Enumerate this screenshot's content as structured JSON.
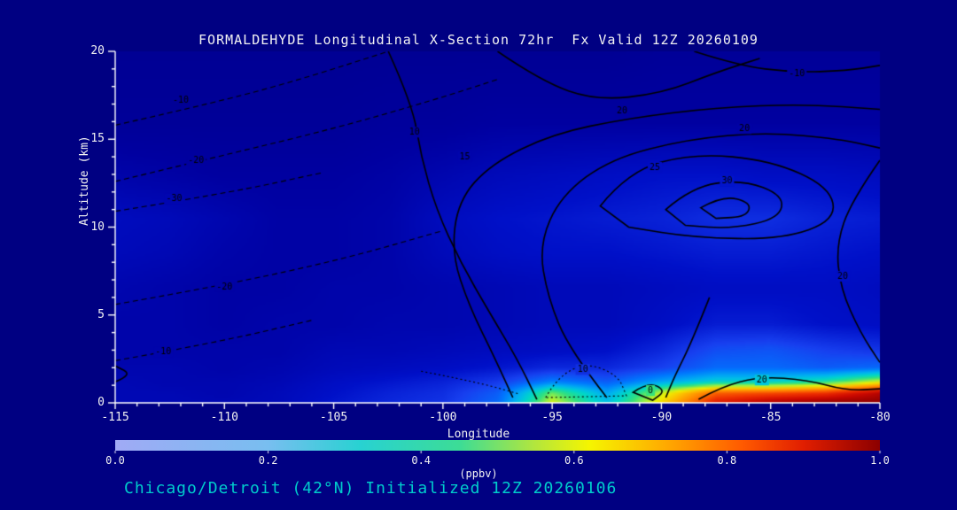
{
  "page": {
    "background": "#000082",
    "text_color": "#f2f2f2",
    "subtitle_color": "#00cccc",
    "axis_color": "#ffffff",
    "contour_line_color": "#000000"
  },
  "chart_data": {
    "type": "heatmap",
    "title": "FORMALDEHYDE Longitudinal X-Section 72hr  Fx Valid 12Z 20260109",
    "subtitle": "Chicago/Detroit (42°N) Initialized 12Z 20260106",
    "xlabel": "Longitude",
    "ylabel": "Altitude (km)",
    "units_label": "(ppbv)",
    "xlim": [
      -115,
      -80
    ],
    "ylim": [
      0,
      20
    ],
    "x_ticks": [
      -115,
      -110,
      -105,
      -100,
      -95,
      -90,
      -85,
      -80
    ],
    "x_tick_labels": [
      "-115",
      "-110",
      "-105",
      "-100",
      "-95",
      "-90",
      "-85",
      "-80"
    ],
    "x_minor_step": 1,
    "y_ticks": [
      0,
      5,
      10,
      15,
      20
    ],
    "y_tick_labels": [
      "0",
      "5",
      "10",
      "15",
      "20"
    ],
    "y_minor_step": 1,
    "grid": false,
    "colorbar": {
      "min": 0.0,
      "max": 1.0,
      "tick_values": [
        0.0,
        0.2,
        0.4,
        0.6,
        0.8,
        1.0
      ],
      "tick_labels": [
        "0.0",
        "0.2",
        "0.4",
        "0.6",
        "0.8",
        "1.0"
      ],
      "gradient_stops": [
        [
          0.0,
          "#a0aaf5"
        ],
        [
          0.2,
          "#78bef0"
        ],
        [
          0.32,
          "#28d2d2"
        ],
        [
          0.45,
          "#3cdc96"
        ],
        [
          0.55,
          "#b4e63c"
        ],
        [
          0.62,
          "#f5f500"
        ],
        [
          0.72,
          "#ffaa00"
        ],
        [
          0.82,
          "#ff5a00"
        ],
        [
          0.9,
          "#e11e00"
        ],
        [
          1.0,
          "#8c0000"
        ]
      ]
    },
    "field_colormap": [
      [
        0.0,
        "#000080"
      ],
      [
        0.08,
        "#0000a0"
      ],
      [
        0.16,
        "#0010c8"
      ],
      [
        0.24,
        "#1840f0"
      ],
      [
        0.32,
        "#0078ff"
      ],
      [
        0.4,
        "#00b4f0"
      ],
      [
        0.46,
        "#00d8c8"
      ],
      [
        0.52,
        "#30e080"
      ],
      [
        0.58,
        "#a0f040"
      ],
      [
        0.63,
        "#f0f000"
      ],
      [
        0.7,
        "#ffb400"
      ],
      [
        0.78,
        "#ff7800"
      ],
      [
        0.86,
        "#f03000"
      ],
      [
        0.93,
        "#cc0800"
      ],
      [
        1.0,
        "#8c0000"
      ]
    ],
    "field": {
      "x": [
        -115,
        -112.5,
        -110,
        -107.5,
        -105,
        -102.5,
        -100,
        -97.5,
        -95,
        -92.5,
        -90,
        -87.5,
        -85,
        -82.5,
        -80
      ],
      "y": [
        0,
        0.6,
        1.2,
        2,
        3,
        4.5,
        6.5,
        8.5,
        10.5,
        13,
        16,
        20
      ],
      "values": [
        [
          0.12,
          0.12,
          0.12,
          0.13,
          0.17,
          0.2,
          0.22,
          0.3,
          0.62,
          0.42,
          0.66,
          0.9,
          0.97,
          1.0,
          1.0
        ],
        [
          0.12,
          0.12,
          0.11,
          0.13,
          0.16,
          0.19,
          0.21,
          0.28,
          0.55,
          0.38,
          0.6,
          0.8,
          0.82,
          0.85,
          0.95
        ],
        [
          0.12,
          0.11,
          0.11,
          0.12,
          0.15,
          0.17,
          0.19,
          0.23,
          0.33,
          0.28,
          0.38,
          0.45,
          0.45,
          0.5,
          0.62
        ],
        [
          0.11,
          0.11,
          0.1,
          0.11,
          0.13,
          0.14,
          0.15,
          0.17,
          0.2,
          0.2,
          0.24,
          0.3,
          0.3,
          0.28,
          0.3
        ],
        [
          0.1,
          0.1,
          0.1,
          0.1,
          0.12,
          0.12,
          0.13,
          0.14,
          0.15,
          0.16,
          0.2,
          0.26,
          0.27,
          0.24,
          0.22
        ],
        [
          0.1,
          0.1,
          0.09,
          0.1,
          0.1,
          0.11,
          0.11,
          0.12,
          0.13,
          0.13,
          0.15,
          0.18,
          0.18,
          0.16,
          0.15
        ],
        [
          0.11,
          0.1,
          0.09,
          0.09,
          0.1,
          0.1,
          0.11,
          0.12,
          0.13,
          0.13,
          0.14,
          0.15,
          0.15,
          0.15,
          0.14
        ],
        [
          0.13,
          0.12,
          0.1,
          0.09,
          0.09,
          0.1,
          0.13,
          0.15,
          0.16,
          0.16,
          0.17,
          0.18,
          0.18,
          0.17,
          0.16
        ],
        [
          0.14,
          0.13,
          0.11,
          0.09,
          0.09,
          0.1,
          0.14,
          0.16,
          0.17,
          0.18,
          0.19,
          0.21,
          0.21,
          0.19,
          0.18
        ],
        [
          0.1,
          0.09,
          0.08,
          0.08,
          0.08,
          0.09,
          0.11,
          0.13,
          0.14,
          0.15,
          0.16,
          0.16,
          0.15,
          0.15,
          0.14
        ],
        [
          0.06,
          0.06,
          0.06,
          0.06,
          0.06,
          0.07,
          0.07,
          0.08,
          0.08,
          0.08,
          0.08,
          0.08,
          0.08,
          0.08,
          0.08
        ],
        [
          0.05,
          0.05,
          0.05,
          0.05,
          0.05,
          0.05,
          0.05,
          0.05,
          0.05,
          0.05,
          0.06,
          0.06,
          0.06,
          0.06,
          0.06
        ]
      ]
    },
    "contours": [
      {
        "label": "-10",
        "label_at": [
          -112,
          17.2
        ],
        "style": "dashed",
        "points": [
          [
            -115,
            15.8
          ],
          [
            -110,
            17.2
          ],
          [
            -106,
            18.6
          ],
          [
            -102.5,
            20
          ]
        ]
      },
      {
        "label": "-20",
        "label_at": [
          -111.3,
          13.8
        ],
        "style": "dashed",
        "points": [
          [
            -115,
            12.6
          ],
          [
            -110,
            14.1
          ],
          [
            -105,
            15.6
          ],
          [
            -100.5,
            17.2
          ],
          [
            -97.5,
            18.4
          ]
        ]
      },
      {
        "label": "-30",
        "label_at": [
          -112.3,
          11.6
        ],
        "style": "dashed",
        "points": [
          [
            -115,
            10.9
          ],
          [
            -110,
            11.9
          ],
          [
            -105.5,
            13.1
          ]
        ]
      },
      {
        "label": "-20",
        "label_at": [
          -110,
          6.6
        ],
        "style": "dashed",
        "points": [
          [
            -115,
            5.6
          ],
          [
            -110,
            6.7
          ],
          [
            -104.5,
            8.2
          ],
          [
            -100,
            9.8
          ]
        ]
      },
      {
        "label": "-10",
        "label_at": [
          -112.8,
          2.9
        ],
        "style": "dashed",
        "points": [
          [
            -115,
            2.4
          ],
          [
            -110.5,
            3.4
          ],
          [
            -106,
            4.7
          ]
        ]
      },
      {
        "label": "10",
        "label_at": [
          -101.3,
          15.4
        ],
        "style": "solid",
        "points": [
          [
            -102.5,
            20
          ],
          [
            -101.4,
            17
          ],
          [
            -101,
            14
          ],
          [
            -100.3,
            11
          ],
          [
            -99.2,
            8
          ],
          [
            -97.8,
            5
          ],
          [
            -96.6,
            2.5
          ],
          [
            -95.7,
            0.2
          ]
        ]
      },
      {
        "label": "15",
        "label_at": [
          -99,
          14
        ],
        "style": "solid",
        "points": [
          [
            -96.8,
            0.3
          ],
          [
            -97.6,
            2.5
          ],
          [
            -98.8,
            5.5
          ],
          [
            -99.6,
            8.5
          ],
          [
            -99.3,
            11.5
          ],
          [
            -97.8,
            13.6
          ],
          [
            -95,
            15.3
          ],
          [
            -91.5,
            16.2
          ],
          [
            -87.5,
            16.8
          ],
          [
            -83.5,
            17
          ],
          [
            -80,
            16.7
          ]
        ]
      },
      {
        "label": "20",
        "label_at": [
          -86.2,
          15.6
        ],
        "style": "solid",
        "points": [
          [
            -92.5,
            0.3
          ],
          [
            -94.2,
            3
          ],
          [
            -95.2,
            6
          ],
          [
            -95.6,
            9
          ],
          [
            -94.6,
            11.8
          ],
          [
            -92.3,
            13.9
          ],
          [
            -88.8,
            15
          ],
          [
            -85.2,
            15.4
          ],
          [
            -81.8,
            15
          ],
          [
            -80,
            14.5
          ]
        ]
      },
      {
        "label": "20",
        "label_at": [
          -91.8,
          16.6
        ],
        "style": "solid",
        "points": [
          [
            -97.5,
            20
          ],
          [
            -95.5,
            18.3
          ],
          [
            -93,
            17.2
          ],
          [
            -90,
            17.6
          ],
          [
            -87.5,
            18.8
          ],
          [
            -85.5,
            19.6
          ]
        ]
      },
      {
        "label": "25",
        "label_at": [
          -90.3,
          13.4
        ],
        "style": "solid",
        "closed": true,
        "points": [
          [
            -92.8,
            11.2
          ],
          [
            -91.5,
            13.2
          ],
          [
            -88.5,
            14.2
          ],
          [
            -85,
            13.8
          ],
          [
            -82.3,
            12.3
          ],
          [
            -82,
            10.4
          ],
          [
            -84.5,
            9.3
          ],
          [
            -88.5,
            9.4
          ],
          [
            -91.5,
            10
          ]
        ]
      },
      {
        "label": "30",
        "label_at": [
          -87,
          12.6
        ],
        "style": "solid",
        "closed": true,
        "points": [
          [
            -89.8,
            11
          ],
          [
            -88.6,
            12.3
          ],
          [
            -86.3,
            12.7
          ],
          [
            -84.4,
            11.8
          ],
          [
            -84.6,
            10.5
          ],
          [
            -86.8,
            9.9
          ],
          [
            -88.9,
            10.1
          ]
        ]
      },
      {
        "label": "",
        "style": "solid",
        "closed": true,
        "points": [
          [
            -88.2,
            11.1
          ],
          [
            -87.2,
            11.8
          ],
          [
            -85.9,
            11.4
          ],
          [
            -86.1,
            10.6
          ],
          [
            -87.5,
            10.5
          ]
        ]
      },
      {
        "label": "-10",
        "label_at": [
          -83.8,
          18.7
        ],
        "style": "solid",
        "points": [
          [
            -88.5,
            20
          ],
          [
            -86.5,
            19.2
          ],
          [
            -84,
            18.8
          ],
          [
            -81.5,
            18.9
          ],
          [
            -80,
            19.2
          ]
        ]
      },
      {
        "label": "20",
        "label_at": [
          -81.7,
          7.2
        ],
        "style": "solid",
        "points": [
          [
            -80,
            13.8
          ],
          [
            -81.3,
            11.5
          ],
          [
            -82,
            9
          ],
          [
            -81.8,
            6.5
          ],
          [
            -80.9,
            4
          ],
          [
            -80,
            2.3
          ]
        ]
      },
      {
        "label": "20",
        "label_at": [
          -85.4,
          1.3
        ],
        "style": "solid",
        "points": [
          [
            -88.3,
            0.2
          ],
          [
            -87.3,
            0.9
          ],
          [
            -85.5,
            1.5
          ],
          [
            -83.3,
            1.3
          ],
          [
            -81.5,
            0.7
          ],
          [
            -80,
            0.8
          ]
        ]
      },
      {
        "label": "",
        "style": "solid",
        "points": [
          [
            -87.8,
            6
          ],
          [
            -88.6,
            3.5
          ],
          [
            -89.4,
            1.5
          ],
          [
            -89.8,
            0.3
          ]
        ]
      },
      {
        "label": "10",
        "label_at": [
          -93.6,
          1.9
        ],
        "style": "dotted",
        "closed": true,
        "points": [
          [
            -95.3,
            0.3
          ],
          [
            -94.8,
            1.4
          ],
          [
            -93.5,
            2.3
          ],
          [
            -92,
            1.6
          ],
          [
            -91.6,
            0.4
          ]
        ]
      },
      {
        "label": "0",
        "label_at": [
          -90.5,
          0.7
        ],
        "style": "solid",
        "closed": true,
        "points": [
          [
            -91.3,
            0.6
          ],
          [
            -90.6,
            1.2
          ],
          [
            -89.8,
            0.7
          ],
          [
            -90.4,
            0.15
          ]
        ]
      },
      {
        "label": "",
        "style": "dotted",
        "points": [
          [
            -101,
            1.8
          ],
          [
            -98.5,
            1.2
          ],
          [
            -96.5,
            0.5
          ]
        ]
      },
      {
        "label": "",
        "style": "solid",
        "points": [
          [
            -115,
            1.2
          ],
          [
            -114.2,
            1.6
          ],
          [
            -115,
            2.1
          ]
        ]
      }
    ]
  }
}
